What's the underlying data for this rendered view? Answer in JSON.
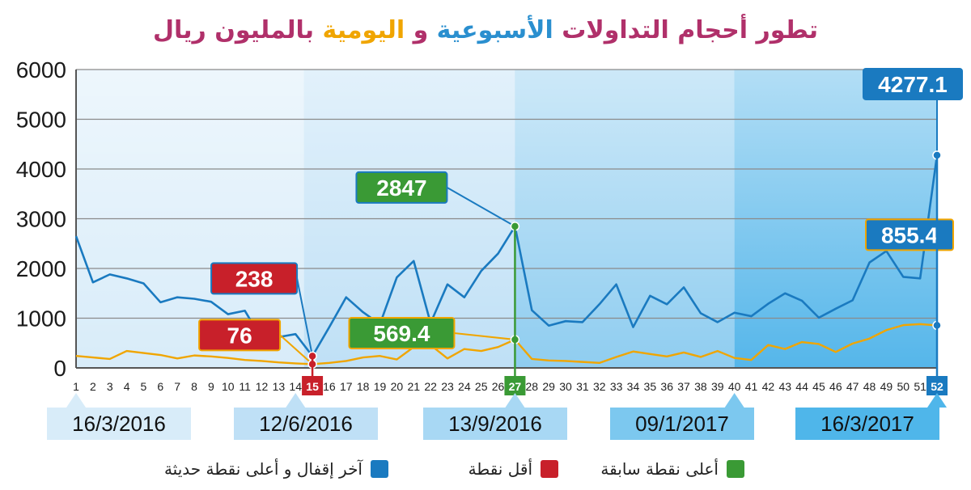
{
  "title": {
    "parts": [
      {
        "text": "تطور أحجام التداولات ",
        "color": "#b0306a"
      },
      {
        "text": "الأسبوعية",
        "color": "#2a8fcf"
      },
      {
        "text": " و ",
        "color": "#b0306a"
      },
      {
        "text": "اليومية",
        "color": "#f0a500"
      },
      {
        "text": " بالمليون ريال",
        "color": "#b0306a"
      }
    ]
  },
  "chart_data": {
    "type": "line",
    "x": [
      1,
      2,
      3,
      4,
      5,
      6,
      7,
      8,
      9,
      10,
      11,
      12,
      13,
      14,
      15,
      16,
      17,
      18,
      19,
      20,
      21,
      22,
      23,
      24,
      25,
      26,
      27,
      28,
      29,
      30,
      31,
      32,
      33,
      34,
      35,
      36,
      37,
      38,
      39,
      40,
      41,
      42,
      43,
      44,
      45,
      46,
      47,
      48,
      49,
      50,
      51,
      52
    ],
    "ylim": [
      0,
      6000
    ],
    "yticks": [
      0,
      1000,
      2000,
      3000,
      4000,
      5000,
      6000
    ],
    "grid": true,
    "series": [
      {
        "color": "#1a7ac0",
        "values": [
          2650,
          1720,
          1880,
          1800,
          1700,
          1320,
          1420,
          1390,
          1330,
          1080,
          1150,
          580,
          620,
          680,
          238,
          820,
          1420,
          1120,
          880,
          1820,
          2150,
          900,
          1680,
          1420,
          1950,
          2300,
          2847,
          1160,
          850,
          940,
          920,
          1280,
          1680,
          820,
          1450,
          1280,
          1620,
          1100,
          920,
          1110,
          1040,
          1290,
          1500,
          1350,
          1010,
          1190,
          1360,
          2120,
          2350,
          1830,
          1800,
          4277.1
        ]
      },
      {
        "color": "#f0a500",
        "values": [
          240,
          210,
          180,
          340,
          300,
          260,
          190,
          250,
          230,
          200,
          160,
          140,
          110,
          90,
          76,
          100,
          140,
          210,
          240,
          170,
          420,
          460,
          190,
          380,
          340,
          420,
          569.4,
          180,
          150,
          140,
          120,
          100,
          220,
          330,
          280,
          230,
          310,
          220,
          340,
          200,
          160,
          460,
          380,
          520,
          480,
          320,
          490,
          590,
          760,
          860,
          880,
          855.4
        ]
      }
    ],
    "callouts": [
      {
        "text": "238",
        "color": "#c8202a",
        "series": 0,
        "x": 15
      },
      {
        "text": "76",
        "color": "#c8202a",
        "series": 1,
        "x": 15
      },
      {
        "text": "2847",
        "color": "#3a9a35",
        "series": 0,
        "x": 27
      },
      {
        "text": "569.4",
        "color": "#3a9a35",
        "series": 1,
        "x": 27
      },
      {
        "text": "4277.1",
        "color": "#1a7ac0",
        "series": 0,
        "x": 52
      },
      {
        "text": "855.4",
        "color": "#1a7ac0",
        "series": 1,
        "x": 52
      }
    ],
    "highlighted_ticks": [
      {
        "x": 15,
        "color": "#c8202a"
      },
      {
        "x": 27,
        "color": "#3a9a35"
      },
      {
        "x": 52,
        "color": "#1a7ac0"
      }
    ],
    "date_labels": [
      {
        "text": "16/3/2016",
        "x": 1
      },
      {
        "text": "12/6/2016",
        "x": 14
      },
      {
        "text": "13/9/2016",
        "x": 27
      },
      {
        "text": "09/1/2017",
        "x": 40
      },
      {
        "text": "16/3/2017",
        "x": 52
      }
    ]
  },
  "legend": [
    {
      "label": "أعلى نقطة سابقة",
      "color": "#3a9a35"
    },
    {
      "label": "أقل نقطة",
      "color": "#c8202a"
    },
    {
      "label": "آخر إقفال و أعلى نقطة حديثة",
      "color": "#1a7ac0"
    }
  ]
}
